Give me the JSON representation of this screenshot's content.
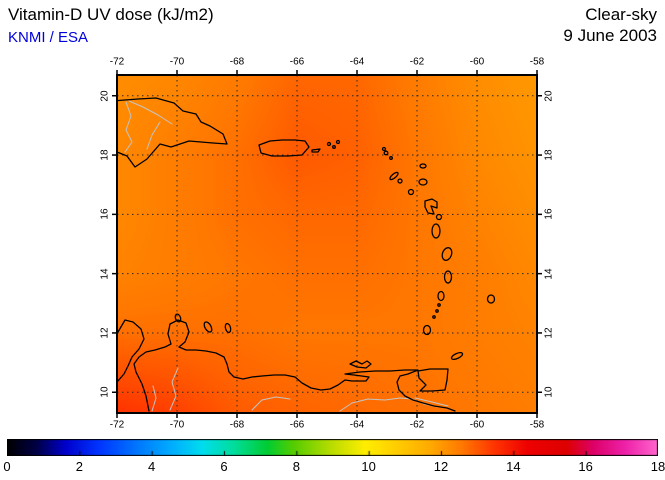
{
  "header": {
    "title": "Vitamin-D UV dose (kJ/m2)",
    "source": "KNMI / ESA",
    "sky_condition": "Clear-sky",
    "date": "9 June 2003"
  },
  "colors": {
    "source_text": "#0000dd",
    "title_text": "#000000",
    "background": "#ffffff",
    "coastline": "#000000",
    "inland_lines": "#c4c4c4",
    "grid_lines": "#2b2b2b"
  },
  "chart_data": {
    "type": "heatmap",
    "title": "Vitamin-D UV dose (kJ/m2)",
    "sky_condition": "Clear-sky",
    "date": "9 June 2003",
    "source": "KNMI / ESA",
    "grid": "dotted",
    "x_axis": {
      "range": [
        -72,
        -58
      ],
      "ticks": [
        -72,
        -70,
        -68,
        -66,
        -64,
        -62,
        -60,
        -58
      ]
    },
    "y_axis": {
      "range": [
        9.3,
        20.7
      ],
      "ticks": [
        20,
        18,
        16,
        14,
        12,
        10
      ]
    },
    "colorbar": {
      "range": [
        0,
        18
      ],
      "ticks": [
        0,
        2,
        4,
        6,
        8,
        10,
        12,
        14,
        16,
        18
      ],
      "stops": [
        {
          "pos": 0.0,
          "color": "#000000"
        },
        {
          "pos": 0.045,
          "color": "#000044"
        },
        {
          "pos": 0.09,
          "color": "#0000cc"
        },
        {
          "pos": 0.14,
          "color": "#0033ff"
        },
        {
          "pos": 0.2,
          "color": "#0077ff"
        },
        {
          "pos": 0.25,
          "color": "#00aaff"
        },
        {
          "pos": 0.3,
          "color": "#00ddee"
        },
        {
          "pos": 0.35,
          "color": "#00dd99"
        },
        {
          "pos": 0.4,
          "color": "#00cc33"
        },
        {
          "pos": 0.44,
          "color": "#55cc00"
        },
        {
          "pos": 0.5,
          "color": "#bbdd00"
        },
        {
          "pos": 0.55,
          "color": "#ffee00"
        },
        {
          "pos": 0.6,
          "color": "#ffcc00"
        },
        {
          "pos": 0.65,
          "color": "#ffaa00"
        },
        {
          "pos": 0.7,
          "color": "#ff7700"
        },
        {
          "pos": 0.75,
          "color": "#ff3300"
        },
        {
          "pos": 0.8,
          "color": "#ee0000"
        },
        {
          "pos": 0.86,
          "color": "#dd0000"
        },
        {
          "pos": 0.9,
          "color": "#dd0066"
        },
        {
          "pos": 0.95,
          "color": "#ee22aa"
        },
        {
          "pos": 1.0,
          "color": "#ff66cc"
        }
      ]
    },
    "field": {
      "unit": "kJ/m2",
      "grid_lons": [
        -72,
        -70,
        -68,
        -66,
        -64,
        -62,
        -60,
        -58
      ],
      "grid_lats": [
        21,
        18,
        16,
        14,
        12,
        9
      ],
      "values": [
        [
          12.2,
          12.3,
          12.5,
          12.8,
          12.8,
          12.5,
          12.2,
          12.0
        ],
        [
          12.3,
          12.5,
          12.7,
          13.0,
          12.9,
          12.6,
          12.3,
          12.1
        ],
        [
          12.3,
          12.5,
          12.7,
          12.8,
          12.8,
          12.6,
          12.4,
          12.2
        ],
        [
          12.4,
          12.5,
          12.6,
          12.7,
          12.7,
          12.6,
          12.5,
          12.3
        ],
        [
          12.7,
          12.7,
          12.7,
          12.6,
          12.6,
          12.6,
          12.5,
          12.4
        ],
        [
          13.6,
          13.4,
          13.0,
          12.9,
          12.8,
          12.7,
          12.6,
          12.5
        ]
      ]
    }
  }
}
